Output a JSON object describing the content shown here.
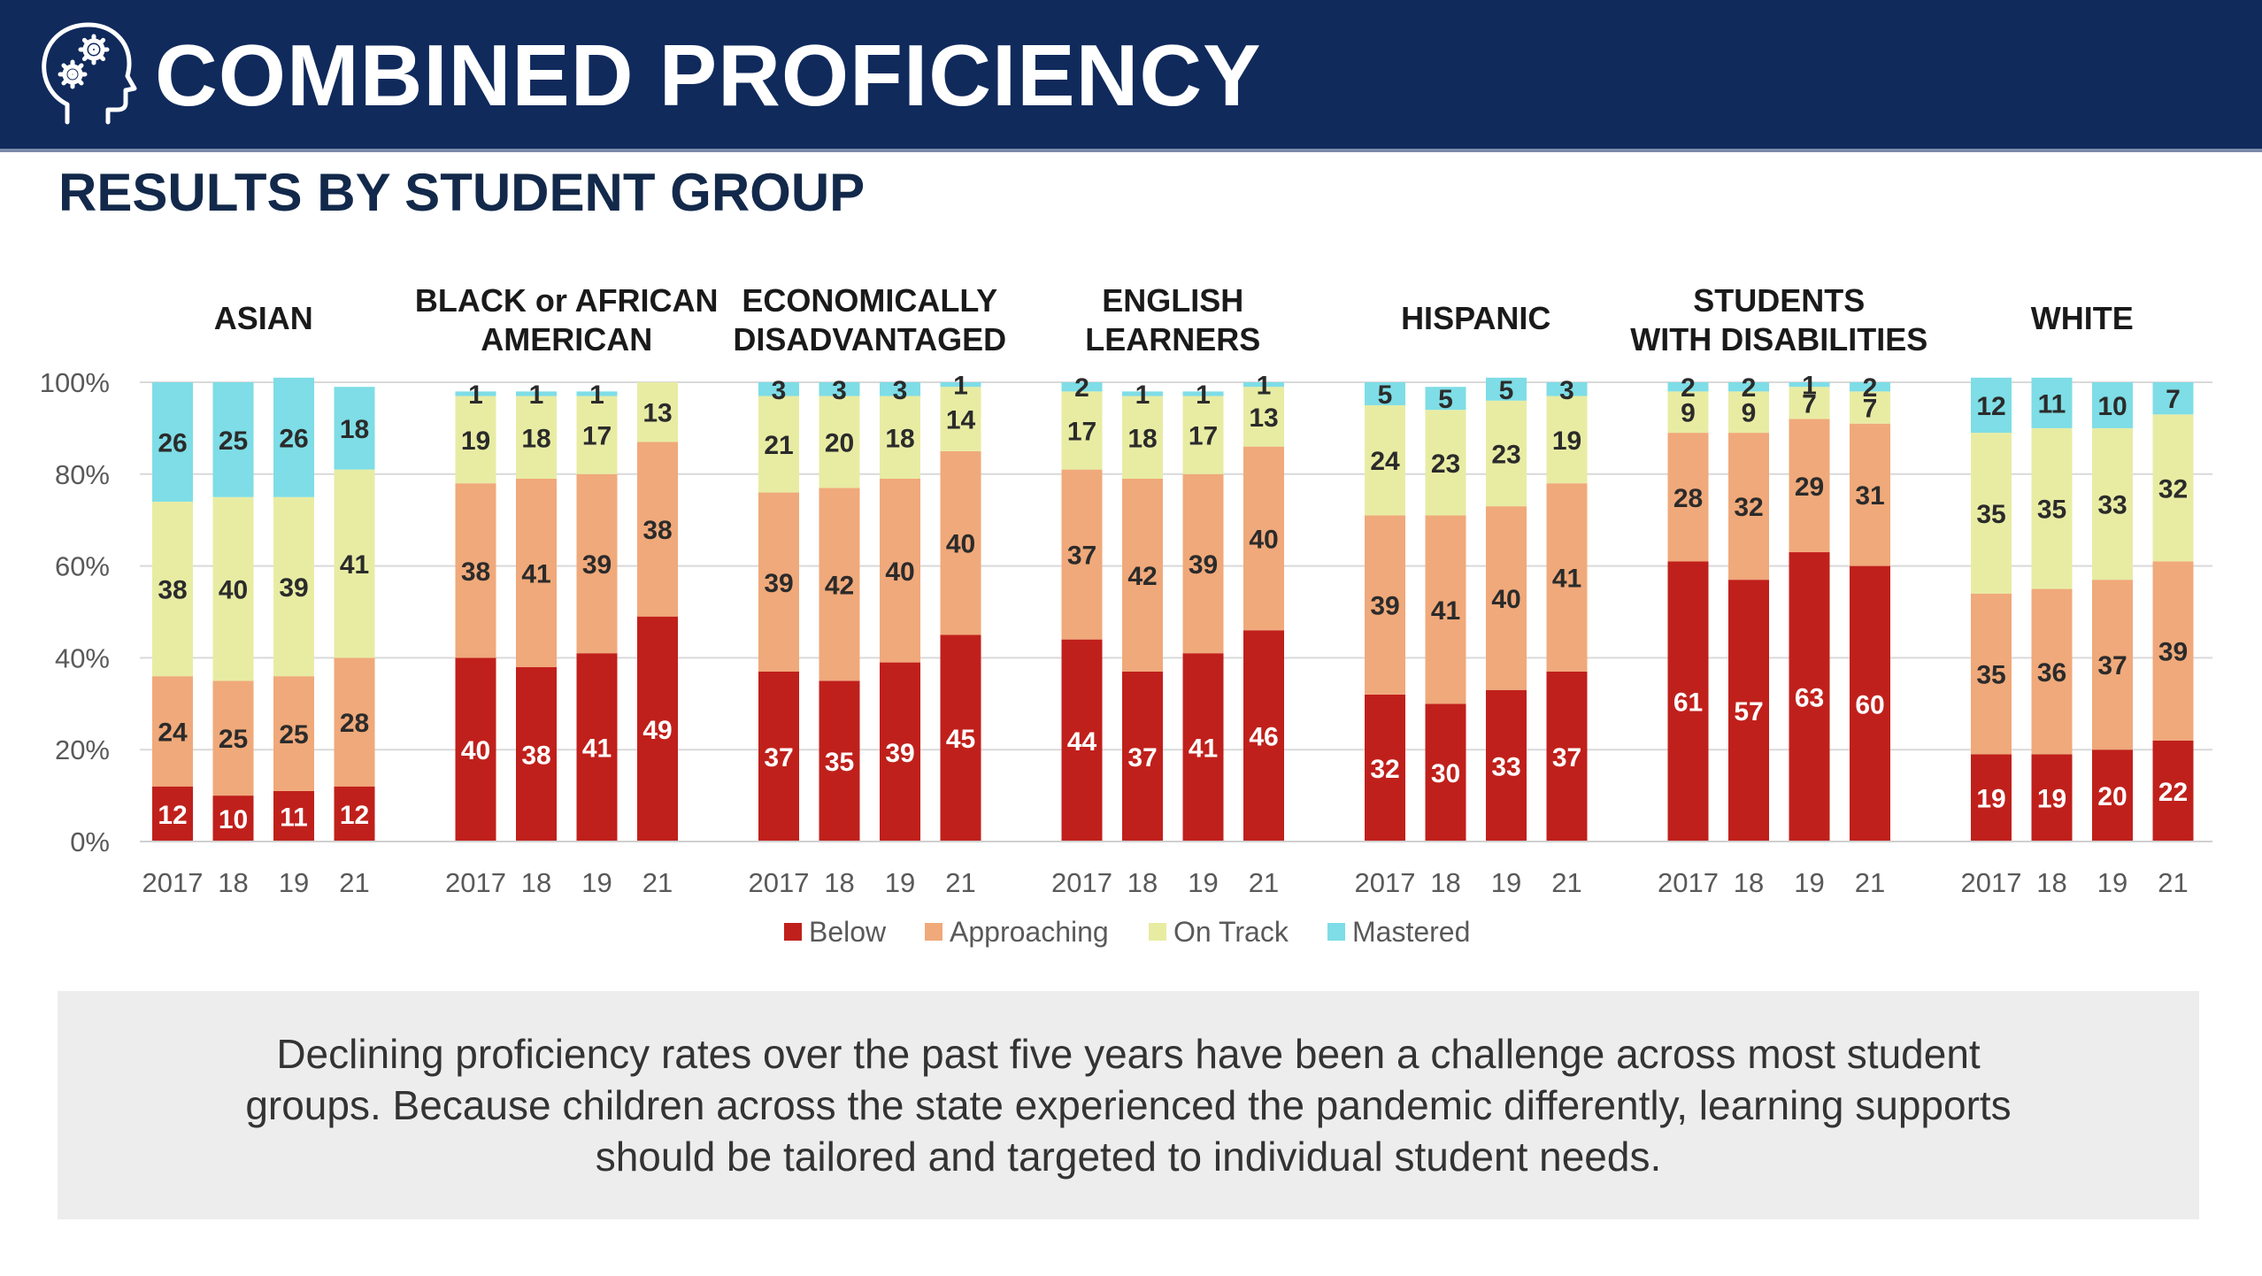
{
  "header": {
    "title": "COMBINED PROFICIENCY",
    "icon": "head-with-gears-icon",
    "background_color": "#102a5c"
  },
  "subtitle": "RESULTS BY STUDENT GROUP",
  "chart_data": {
    "type": "bar",
    "stacked": true,
    "y_tick_labels": [
      "0%",
      "20%",
      "40%",
      "60%",
      "80%",
      "100%"
    ],
    "ylim": [
      0,
      100
    ],
    "grid": true,
    "legend_position": "bottom",
    "year_labels": [
      "2017",
      "18",
      "19",
      "21"
    ],
    "series": [
      {
        "name": "Below",
        "color": "#c0201b"
      },
      {
        "name": "Approaching",
        "color": "#f0a97a"
      },
      {
        "name": "On Track",
        "color": "#e8eca3"
      },
      {
        "name": "Mastered",
        "color": "#7edde6"
      }
    ],
    "groups": [
      {
        "title": [
          "ASIAN"
        ],
        "values": [
          [
            12,
            24,
            38,
            26
          ],
          [
            10,
            25,
            40,
            25
          ],
          [
            11,
            25,
            39,
            26
          ],
          [
            12,
            28,
            41,
            18
          ]
        ]
      },
      {
        "title": [
          "BLACK or AFRICAN",
          "AMERICAN"
        ],
        "values": [
          [
            40,
            38,
            19,
            1
          ],
          [
            38,
            41,
            18,
            1
          ],
          [
            41,
            39,
            17,
            1
          ],
          [
            49,
            38,
            13,
            0
          ]
        ]
      },
      {
        "title": [
          "ECONOMICALLY",
          "DISADVANTAGED"
        ],
        "values": [
          [
            37,
            39,
            21,
            3
          ],
          [
            35,
            42,
            20,
            3
          ],
          [
            39,
            40,
            18,
            3
          ],
          [
            45,
            40,
            14,
            1
          ]
        ]
      },
      {
        "title": [
          "ENGLISH",
          "LEARNERS"
        ],
        "values": [
          [
            44,
            37,
            17,
            2
          ],
          [
            37,
            42,
            18,
            1
          ],
          [
            41,
            39,
            17,
            1
          ],
          [
            46,
            40,
            13,
            1
          ]
        ]
      },
      {
        "title": [
          "HISPANIC"
        ],
        "values": [
          [
            32,
            39,
            24,
            5
          ],
          [
            30,
            41,
            23,
            5
          ],
          [
            33,
            40,
            23,
            5
          ],
          [
            37,
            41,
            19,
            3
          ]
        ]
      },
      {
        "title": [
          "STUDENTS",
          "WITH DISABILITIES"
        ],
        "values": [
          [
            61,
            28,
            9,
            2
          ],
          [
            57,
            32,
            9,
            2
          ],
          [
            63,
            29,
            7,
            1
          ],
          [
            60,
            31,
            7,
            2
          ]
        ]
      },
      {
        "title": [
          "WHITE"
        ],
        "values": [
          [
            19,
            35,
            35,
            12
          ],
          [
            19,
            36,
            35,
            11
          ],
          [
            20,
            37,
            33,
            10
          ],
          [
            22,
            39,
            32,
            7
          ]
        ]
      }
    ]
  },
  "callout": {
    "text": "Declining proficiency rates over the past five years have been a challenge across most student groups. Because children across the state experienced the pandemic differently, learning supports should be tailored and targeted to individual student needs."
  }
}
